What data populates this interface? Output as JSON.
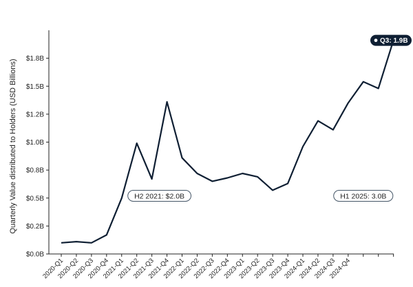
{
  "chart_data": {
    "type": "line",
    "title": "",
    "xlabel": "",
    "ylabel": "Quarterly Value distributed to Holders (USD Billions)",
    "ylim": [
      0,
      2.0
    ],
    "y_ticks": [
      {
        "value": 0.0,
        "label": "$0.0B"
      },
      {
        "value": 0.25,
        "label": "$0.2B"
      },
      {
        "value": 0.5,
        "label": "$0.5B"
      },
      {
        "value": 0.75,
        "label": "$0.8B"
      },
      {
        "value": 1.0,
        "label": "$1.0B"
      },
      {
        "value": 1.25,
        "label": "$1.2B"
      },
      {
        "value": 1.5,
        "label": "$1.5B"
      },
      {
        "value": 1.75,
        "label": "$1.8B"
      }
    ],
    "categories": [
      "2020-Q1",
      "2020-Q2",
      "2020-Q3",
      "2020-Q4",
      "2021-Q1",
      "2021-Q2",
      "2021-Q3",
      "2021-Q4",
      "2022-Q1",
      "2022-Q2",
      "2022-Q3",
      "2022-Q4",
      "2023-Q1",
      "2023-Q2",
      "2023-Q3",
      "2023-Q4",
      "2024-Q1",
      "2024-Q2",
      "2024-Q3",
      "2024-Q4",
      "",
      "",
      ""
    ],
    "values": [
      0.1,
      0.11,
      0.1,
      0.17,
      0.5,
      0.99,
      0.67,
      1.36,
      0.86,
      0.72,
      0.65,
      0.68,
      0.72,
      0.69,
      0.57,
      0.63,
      0.96,
      1.19,
      1.11,
      1.35,
      1.54,
      1.48,
      1.91
    ],
    "grid": false,
    "line_color": "#0f1f33",
    "annotations": [
      {
        "label": "H2 2021: $2.0B",
        "x_index": 6.5,
        "y": 0.52
      },
      {
        "label": "H1 2025: 3.0B",
        "x_index": 20.0,
        "y": 0.52
      }
    ],
    "callout": {
      "label": "Q3: 1.9B",
      "index": 22
    }
  }
}
